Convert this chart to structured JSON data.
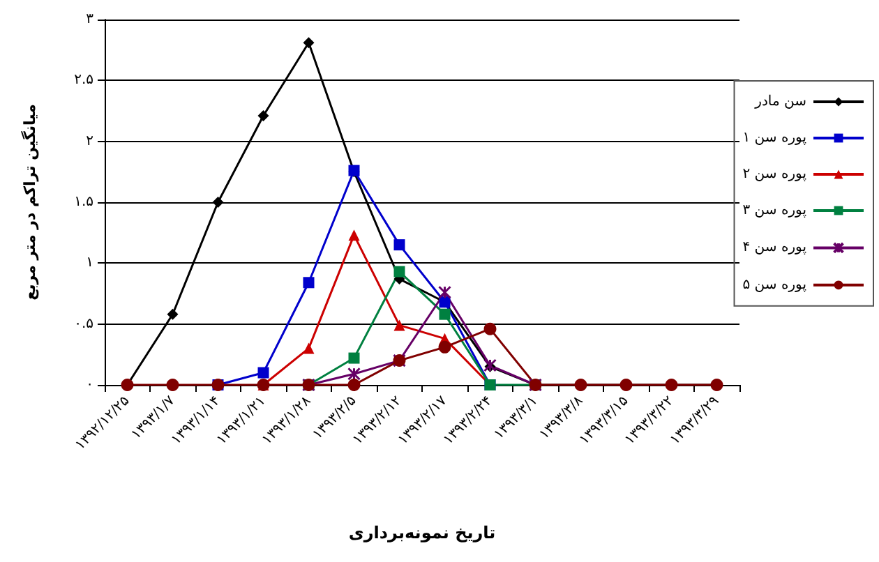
{
  "chart_data": {
    "type": "line",
    "xlabel": "تاریخ نمونه‌برداری",
    "ylabel": "میانگین تراکم در متر مربع",
    "categories": [
      "۱۳۹۲/۱۲/۲۵",
      "۱۳۹۳/۱/۷",
      "۱۳۹۳/۱/۱۴",
      "۱۳۹۳/۱/۲۱",
      "۱۳۹۳/۱/۲۸",
      "۱۳۹۳/۲/۵",
      "۱۳۹۳/۲/۱۲",
      "۱۳۹۳/۲/۱۷",
      "۱۳۹۳/۲/۲۴",
      "۱۳۹۳/۳/۱",
      "۱۳۹۳/۳/۸",
      "۱۳۹۳/۳/۱۵",
      "۱۳۹۳/۳/۲۲",
      "۱۳۹۳/۳/۲۹"
    ],
    "series": [
      {
        "name": "سن مادر",
        "color": "#000000",
        "marker": "diamond",
        "values": [
          0,
          0.58,
          1.5,
          2.21,
          2.81,
          1.75,
          0.87,
          0.68,
          0.15,
          0,
          0,
          0,
          0,
          0
        ]
      },
      {
        "name": "پوره سن ۱",
        "color": "#0000cc",
        "marker": "square",
        "values": [
          null,
          null,
          0,
          0.1,
          0.84,
          1.76,
          1.15,
          0.68,
          0,
          null,
          null,
          null,
          null,
          null
        ]
      },
      {
        "name": "پوره سن ۲",
        "color": "#cc0000",
        "marker": "triangle",
        "values": [
          null,
          null,
          null,
          0,
          0.3,
          1.23,
          0.49,
          0.38,
          0,
          null,
          null,
          null,
          null,
          null
        ]
      },
      {
        "name": "پوره سن ۳",
        "color": "#008040",
        "marker": "square",
        "values": [
          null,
          null,
          null,
          null,
          0,
          0.22,
          0.93,
          0.58,
          0,
          0,
          null,
          null,
          null,
          null
        ]
      },
      {
        "name": "پوره سن ۴",
        "color": "#660066",
        "marker": "cross",
        "values": [
          null,
          null,
          null,
          null,
          0,
          0.09,
          0.2,
          0.76,
          0.16,
          0,
          null,
          null,
          null,
          null
        ]
      },
      {
        "name": "پوره سن ۵",
        "color": "#800000",
        "marker": "circle",
        "values": [
          0,
          0,
          0,
          0,
          0,
          0,
          0.2,
          0.31,
          0.46,
          0,
          0,
          0,
          0,
          0
        ]
      }
    ],
    "ylim": [
      0,
      3
    ],
    "yticks": [
      {
        "value": 0,
        "label": "۰"
      },
      {
        "value": 0.5,
        "label": "۰.۵"
      },
      {
        "value": 1,
        "label": "۱"
      },
      {
        "value": 1.5,
        "label": "۱.۵"
      },
      {
        "value": 2,
        "label": "۲"
      },
      {
        "value": 2.5,
        "label": "۲.۵"
      },
      {
        "value": 3,
        "label": "۳"
      }
    ],
    "grid": "y",
    "legend": "right",
    "line_style": "solid"
  }
}
